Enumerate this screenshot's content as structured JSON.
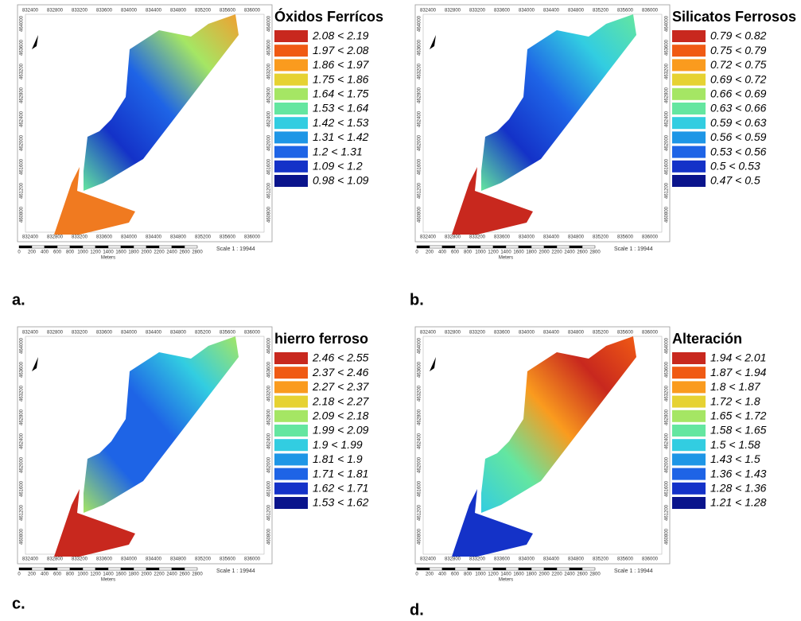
{
  "map_grid": {
    "x_labels": [
      "832400",
      "832800",
      "833200",
      "833600",
      "834000",
      "834400",
      "834800",
      "835200",
      "835600",
      "836000"
    ],
    "y_labels": [
      "464000",
      "463600",
      "463200",
      "462800",
      "462400",
      "462000",
      "461600",
      "461200",
      "460800"
    ],
    "scale_bar": [
      "0",
      "200",
      "400",
      "600",
      "800",
      "1000",
      "1200",
      "1400",
      "1600",
      "1800",
      "2000",
      "2200",
      "2400",
      "2600",
      "2800"
    ],
    "scale_unit": "Meters",
    "scale": "Scale 1 : 19944"
  },
  "legend_colors": [
    "#c8281e",
    "#f05a14",
    "#fa9b1e",
    "#e6d232",
    "#a5e664",
    "#64e6a0",
    "#32cde1",
    "#1e96e6",
    "#1e64e6",
    "#1432c8",
    "#0a148c"
  ],
  "panels": [
    {
      "label": "a.",
      "legend": {
        "title": "Óxidos Ferrícos",
        "items": [
          "2.08 < 2.19",
          "1.97 < 2.08",
          "1.86 < 1.97",
          "1.75 < 1.86",
          "1.64 < 1.75",
          "1.53 < 1.64",
          "1.42 < 1.53",
          "1.31 < 1.42",
          "1.2 < 1.31",
          "1.09 < 1.2",
          "0.98 < 1.09"
        ]
      }
    },
    {
      "label": "b.",
      "legend": {
        "title": "Silicatos Ferrosos",
        "items": [
          "0.79 < 0.82",
          "0.75 < 0.79",
          "0.72 < 0.75",
          "0.69 < 0.72",
          "0.66 < 0.69",
          "0.63 < 0.66",
          "0.59 < 0.63",
          "0.56 < 0.59",
          "0.53 < 0.56",
          "0.5 < 0.53",
          "0.47 < 0.5"
        ]
      }
    },
    {
      "label": "c.",
      "legend": {
        "title": "hierro ferroso",
        "items": [
          "2.46 < 2.55",
          "2.37 < 2.46",
          "2.27 < 2.37",
          "2.18 < 2.27",
          "2.09 < 2.18",
          "1.99 < 2.09",
          "1.9 < 1.99",
          "1.81 < 1.9",
          "1.71 < 1.81",
          "1.62 < 1.71",
          "1.53 < 1.62"
        ]
      }
    },
    {
      "label": "d.",
      "legend": {
        "title": "Alteración",
        "items": [
          "1.94 < 2.01",
          "1.87 < 1.94",
          "1.8 < 1.87",
          "1.72 < 1.8",
          "1.65 < 1.72",
          "1.58 < 1.65",
          "1.5 < 1.58",
          "1.43 < 1.5",
          "1.36 < 1.43",
          "1.28 < 1.36",
          "1.21 < 1.28"
        ]
      }
    }
  ]
}
